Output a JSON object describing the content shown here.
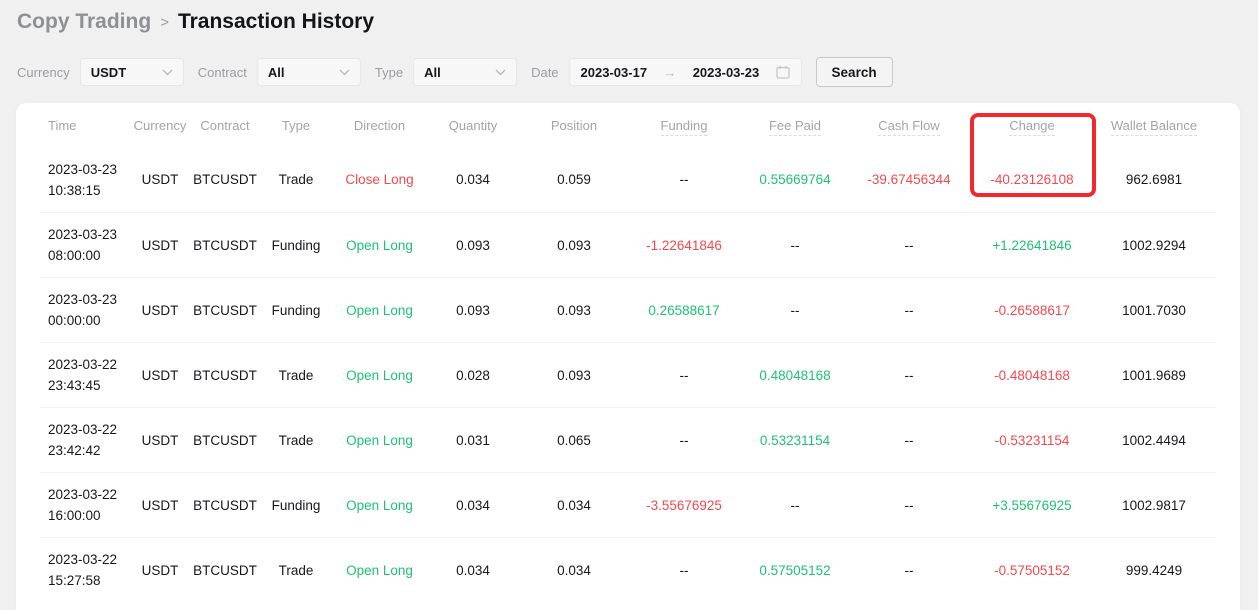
{
  "breadcrumb": {
    "parent": "Copy Trading",
    "separator": ">",
    "current": "Transaction History"
  },
  "filters": {
    "currency": {
      "label": "Currency",
      "value": "USDT"
    },
    "contract": {
      "label": "Contract",
      "value": "All"
    },
    "type": {
      "label": "Type",
      "value": "All"
    },
    "date": {
      "label": "Date",
      "start": "2023-03-17",
      "arrow": "→",
      "end": "2023-03-23"
    },
    "search_label": "Search"
  },
  "table": {
    "columns": [
      {
        "label": "Time",
        "underline": false
      },
      {
        "label": "Currency",
        "underline": false
      },
      {
        "label": "Contract",
        "underline": false
      },
      {
        "label": "Type",
        "underline": false
      },
      {
        "label": "Direction",
        "underline": false
      },
      {
        "label": "Quantity",
        "underline": false
      },
      {
        "label": "Position",
        "underline": false
      },
      {
        "label": "Funding",
        "underline": true
      },
      {
        "label": "Fee Paid",
        "underline": true
      },
      {
        "label": "Cash Flow",
        "underline": true
      },
      {
        "label": "Change",
        "underline": true
      },
      {
        "label": "Wallet Balance",
        "underline": true
      }
    ],
    "rows": [
      {
        "date": "2023-03-23",
        "time": "10:38:15",
        "currency": "USDT",
        "contract": "BTCUSDT",
        "type": "Trade",
        "direction": "Close Long",
        "direction_color": "red",
        "quantity": "0.034",
        "position": "0.059",
        "funding": "--",
        "funding_color": "default",
        "fee_paid": "0.55669764",
        "fee_paid_color": "green",
        "cash_flow": "-39.67456344",
        "cash_flow_color": "red",
        "change": "-40.23126108",
        "change_color": "red",
        "wallet_balance": "962.6981"
      },
      {
        "date": "2023-03-23",
        "time": "08:00:00",
        "currency": "USDT",
        "contract": "BTCUSDT",
        "type": "Funding",
        "direction": "Open Long",
        "direction_color": "green",
        "quantity": "0.093",
        "position": "0.093",
        "funding": "-1.22641846",
        "funding_color": "red",
        "fee_paid": "--",
        "fee_paid_color": "default",
        "cash_flow": "--",
        "cash_flow_color": "default",
        "change": "+1.22641846",
        "change_color": "green",
        "wallet_balance": "1002.9294"
      },
      {
        "date": "2023-03-23",
        "time": "00:00:00",
        "currency": "USDT",
        "contract": "BTCUSDT",
        "type": "Funding",
        "direction": "Open Long",
        "direction_color": "green",
        "quantity": "0.093",
        "position": "0.093",
        "funding": "0.26588617",
        "funding_color": "green",
        "fee_paid": "--",
        "fee_paid_color": "default",
        "cash_flow": "--",
        "cash_flow_color": "default",
        "change": "-0.26588617",
        "change_color": "red",
        "wallet_balance": "1001.7030"
      },
      {
        "date": "2023-03-22",
        "time": "23:43:45",
        "currency": "USDT",
        "contract": "BTCUSDT",
        "type": "Trade",
        "direction": "Open Long",
        "direction_color": "green",
        "quantity": "0.028",
        "position": "0.093",
        "funding": "--",
        "funding_color": "default",
        "fee_paid": "0.48048168",
        "fee_paid_color": "green",
        "cash_flow": "--",
        "cash_flow_color": "default",
        "change": "-0.48048168",
        "change_color": "red",
        "wallet_balance": "1001.9689"
      },
      {
        "date": "2023-03-22",
        "time": "23:42:42",
        "currency": "USDT",
        "contract": "BTCUSDT",
        "type": "Trade",
        "direction": "Open Long",
        "direction_color": "green",
        "quantity": "0.031",
        "position": "0.065",
        "funding": "--",
        "funding_color": "default",
        "fee_paid": "0.53231154",
        "fee_paid_color": "green",
        "cash_flow": "--",
        "cash_flow_color": "default",
        "change": "-0.53231154",
        "change_color": "red",
        "wallet_balance": "1002.4494"
      },
      {
        "date": "2023-03-22",
        "time": "16:00:00",
        "currency": "USDT",
        "contract": "BTCUSDT",
        "type": "Funding",
        "direction": "Open Long",
        "direction_color": "green",
        "quantity": "0.034",
        "position": "0.034",
        "funding": "-3.55676925",
        "funding_color": "red",
        "fee_paid": "--",
        "fee_paid_color": "default",
        "cash_flow": "--",
        "cash_flow_color": "default",
        "change": "+3.55676925",
        "change_color": "green",
        "wallet_balance": "1002.9817"
      },
      {
        "date": "2023-03-22",
        "time": "15:27:58",
        "currency": "USDT",
        "contract": "BTCUSDT",
        "type": "Trade",
        "direction": "Open Long",
        "direction_color": "green",
        "quantity": "0.034",
        "position": "0.034",
        "funding": "--",
        "funding_color": "default",
        "fee_paid": "0.57505152",
        "fee_paid_color": "green",
        "cash_flow": "--",
        "cash_flow_color": "default",
        "change": "-0.57505152",
        "change_color": "red",
        "wallet_balance": "999.4249"
      }
    ]
  },
  "colors": {
    "positive_green": "#20c077",
    "negative_red": "#f2494f",
    "annotation_red": "#f2282c"
  }
}
